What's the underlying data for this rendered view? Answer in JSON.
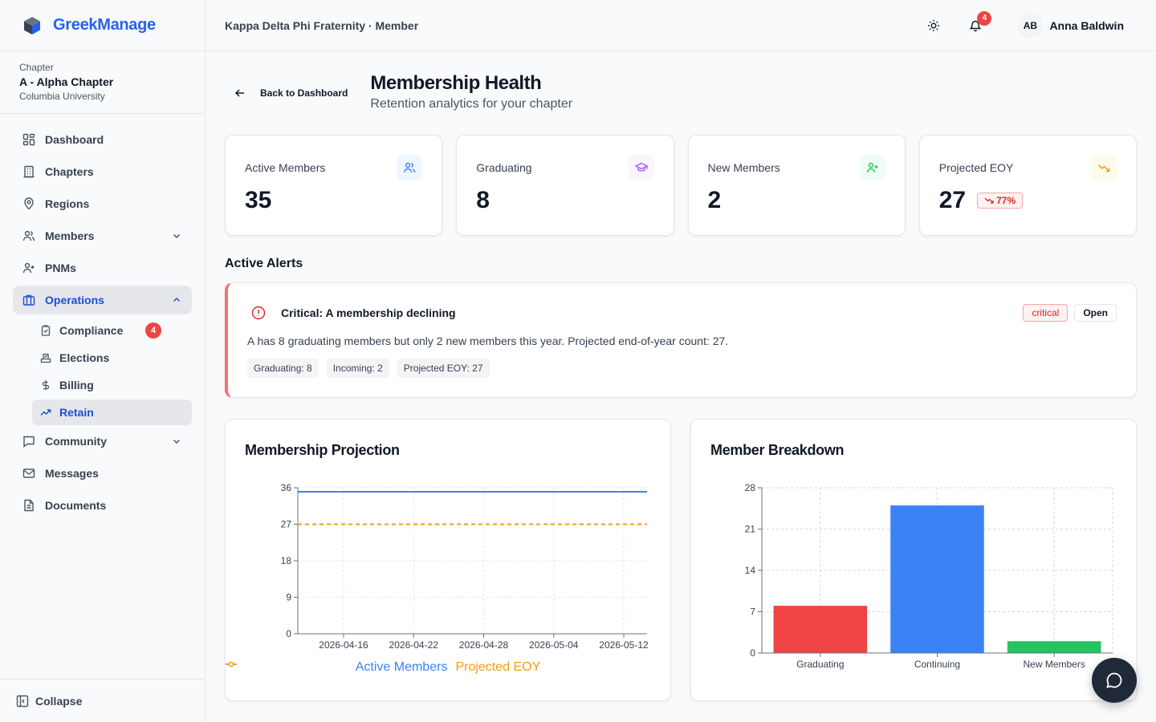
{
  "brand": {
    "name": "GreekManage"
  },
  "chapter": {
    "label": "Chapter",
    "name": "A - Alpha Chapter",
    "university": "Columbia University"
  },
  "nav": {
    "dashboard": "Dashboard",
    "chapters": "Chapters",
    "regions": "Regions",
    "members": "Members",
    "pnms": "PNMs",
    "operations": "Operations",
    "compliance": "Compliance",
    "compliance_badge": "4",
    "elections": "Elections",
    "billing": "Billing",
    "retain": "Retain",
    "community": "Community",
    "messages": "Messages",
    "documents": "Documents",
    "collapse": "Collapse"
  },
  "header": {
    "breadcrumb": "Kappa Delta Phi Fraternity · Member",
    "notification_count": "4",
    "user_initials": "AB",
    "user_name": "Anna Baldwin"
  },
  "page": {
    "back_label": "Back to Dashboard",
    "title": "Membership Health",
    "subtitle": "Retention analytics for your chapter"
  },
  "stats": [
    {
      "label": "Active Members",
      "value": "35",
      "icon": "users-icon",
      "color": "#3b82f6"
    },
    {
      "label": "Graduating",
      "value": "8",
      "icon": "graduation-cap-icon",
      "color": "#a855f7"
    },
    {
      "label": "New Members",
      "value": "2",
      "icon": "user-plus-icon",
      "color": "#22c55e"
    },
    {
      "label": "Projected EOY",
      "value": "27",
      "trend": "77%",
      "icon": "trending-down-icon",
      "color": "#f59e0b"
    }
  ],
  "alerts": {
    "section_title": "Active Alerts",
    "items": [
      {
        "title": "Critical: A membership declining",
        "severity": "critical",
        "status": "Open",
        "message": "A has 8 graduating members but only 2 new members this year. Projected end-of-year count: 27.",
        "chips": [
          "Graduating: 8",
          "Incoming: 2",
          "Projected EOY: 27"
        ]
      }
    ]
  },
  "chart_data": [
    {
      "type": "line",
      "title": "Membership Projection",
      "x": [
        "2026-04-16",
        "2026-04-22",
        "2026-04-28",
        "2026-05-04",
        "2026-05-12"
      ],
      "ylim": [
        0,
        36
      ],
      "yticks": [
        0,
        9,
        18,
        27,
        36
      ],
      "grid": true,
      "legend": "bottom",
      "series": [
        {
          "name": "Active Members",
          "values": [
            35,
            35,
            35,
            35,
            35
          ],
          "color": "#3b82f6",
          "style": "solid"
        },
        {
          "name": "Projected EOY",
          "values": [
            27,
            27,
            27,
            27,
            27
          ],
          "color": "#f59e0b",
          "style": "dashed"
        }
      ]
    },
    {
      "type": "bar",
      "title": "Member Breakdown",
      "categories": [
        "Graduating",
        "Continuing",
        "New Members"
      ],
      "values": [
        8,
        25,
        2
      ],
      "colors": [
        "#ef4444",
        "#3b82f6",
        "#22c55e"
      ],
      "ylim": [
        0,
        28
      ],
      "yticks": [
        0,
        7,
        14,
        21,
        28
      ],
      "grid": true
    }
  ]
}
